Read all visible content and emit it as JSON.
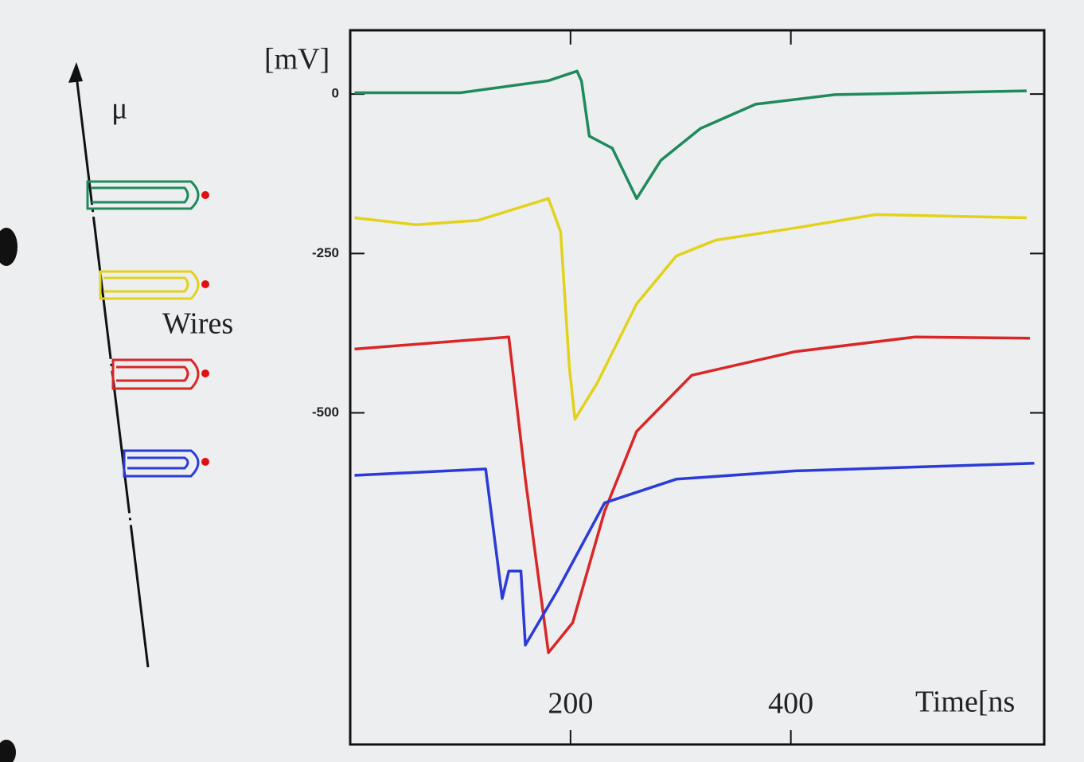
{
  "chart_data": {
    "type": "line",
    "y_label": "[mV]",
    "x_label": "Time[ns",
    "annotations": [
      "μ",
      "Wires"
    ],
    "xlim": [
      0,
      630
    ],
    "ylim": [
      -1020,
      100
    ],
    "xticks": [
      200,
      400
    ],
    "yticks": [
      0,
      -250,
      -500
    ],
    "series": [
      {
        "color": "#1f8a5c",
        "x": [
          4,
          100,
          180,
          206,
          210,
          217,
          238,
          260,
          282,
          318,
          368,
          440,
          614
        ],
        "values": [
          2,
          2,
          21,
          36,
          20,
          -66,
          -85,
          -164,
          -104,
          -54,
          -16,
          -1,
          5
        ]
      },
      {
        "color": "#e3d21a",
        "x": [
          4,
          60,
          116,
          180,
          191,
          199,
          204,
          224,
          260,
          296,
          332,
          404,
          477,
          614
        ],
        "values": [
          -194,
          -205,
          -198,
          -164,
          -216,
          -429,
          -510,
          -454,
          -329,
          -254,
          -229,
          -210,
          -189,
          -194
        ]
      },
      {
        "color": "#d92626",
        "x": [
          4,
          144,
          159,
          180,
          202,
          231,
          260,
          310,
          404,
          513,
          617
        ],
        "values": [
          -400,
          -381,
          -604,
          -876,
          -829,
          -654,
          -529,
          -441,
          -404,
          -381,
          -383
        ]
      },
      {
        "color": "#2b3bd6",
        "x": [
          4,
          123,
          138,
          144,
          155,
          159,
          188,
          231,
          296,
          404,
          621
        ],
        "values": [
          -598,
          -588,
          -791,
          -748,
          -748,
          -864,
          -779,
          -641,
          -604,
          -591,
          -579
        ]
      }
    ]
  }
}
